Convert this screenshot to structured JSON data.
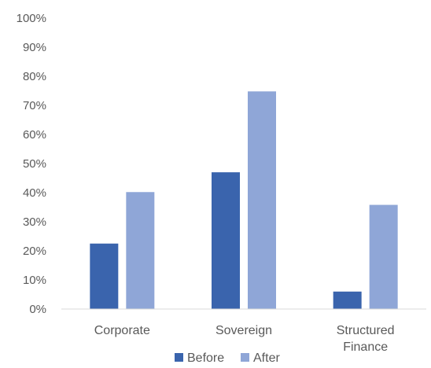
{
  "chart_data": {
    "type": "bar",
    "categories": [
      [
        "Corporate"
      ],
      [
        "Sovereign"
      ],
      [
        "Structured",
        "Finance"
      ]
    ],
    "series": [
      {
        "name": "Before",
        "color": "#3a64ad",
        "values": [
          22.5,
          47,
          6
        ]
      },
      {
        "name": "After",
        "color": "#8fa6d7",
        "values": [
          40.2,
          74.8,
          35.8
        ]
      }
    ],
    "ylim": [
      0,
      100
    ],
    "yticks": [
      0,
      10,
      20,
      30,
      40,
      50,
      60,
      70,
      80,
      90,
      100
    ],
    "ytick_suffix": "%",
    "legend_position": "bottom",
    "grid": false
  }
}
